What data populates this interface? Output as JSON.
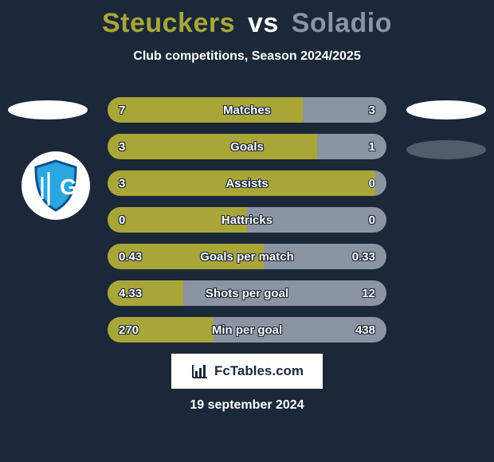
{
  "background_color": "#1b2838",
  "title": {
    "left": "Steuckers",
    "vs": "vs",
    "right": "Soladio",
    "color_left": "#a9a638",
    "color_vs": "#ffffff",
    "color_right": "#8a94a3",
    "fontsize": 34
  },
  "subtitle": {
    "text": "Club competitions, Season 2024/2025",
    "fontsize": 16
  },
  "badge": {
    "shield_fill": "#2aa7e0",
    "shield_stroke": "#0e4f8a",
    "letter": "G",
    "letter_color": "#ffffff"
  },
  "bars": {
    "color_left": "#a9a638",
    "color_right": "#8a94a3",
    "value_fontsize": 15,
    "label_fontsize": 15,
    "rows": [
      {
        "label": "Matches",
        "left": "7",
        "right": "3",
        "left_pct": 70
      },
      {
        "label": "Goals",
        "left": "3",
        "right": "1",
        "left_pct": 75
      },
      {
        "label": "Assists",
        "left": "3",
        "right": "0",
        "left_pct": 100
      },
      {
        "label": "Hattricks",
        "left": "0",
        "right": "0",
        "left_pct": 50
      },
      {
        "label": "Goals per match",
        "left": "0.43",
        "right": "0.33",
        "left_pct": 56
      },
      {
        "label": "Shots per goal",
        "left": "4.33",
        "right": "12",
        "left_pct": 27
      },
      {
        "label": "Min per goal",
        "left": "270",
        "right": "438",
        "left_pct": 38
      }
    ]
  },
  "brand": {
    "text": "FcTables.com",
    "fontsize": 17
  },
  "date": {
    "text": "19 september 2024",
    "fontsize": 16
  }
}
